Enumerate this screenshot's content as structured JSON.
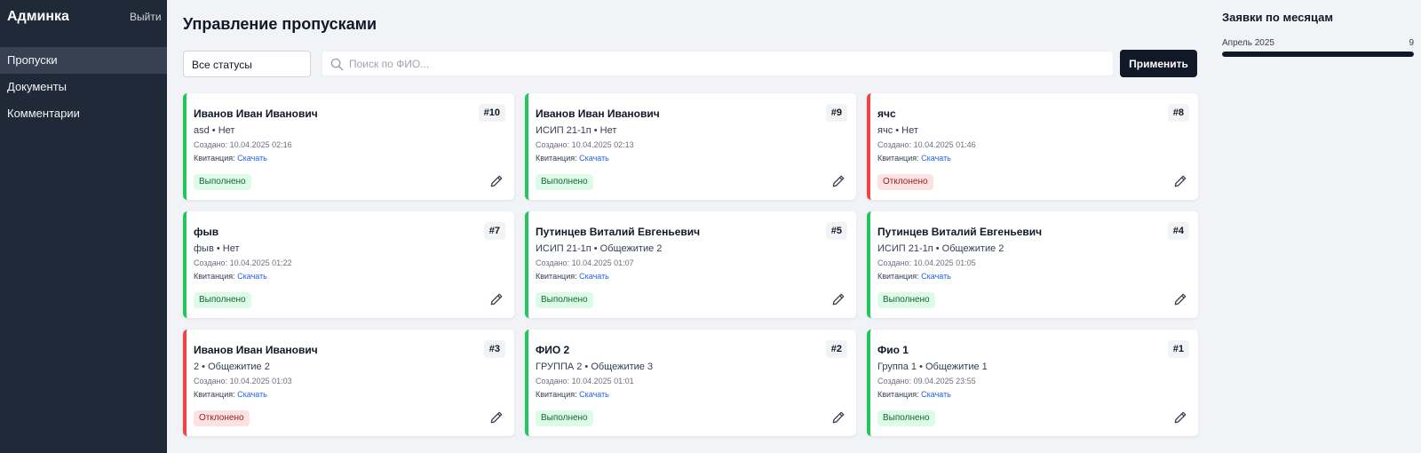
{
  "sidebar": {
    "brand": "Админка",
    "logout": "Выйти",
    "items": [
      {
        "label": "Пропуски",
        "active": true
      },
      {
        "label": "Документы",
        "active": false
      },
      {
        "label": "Комментарии",
        "active": false
      }
    ]
  },
  "header": {
    "title": "Управление пропусками"
  },
  "filters": {
    "status_value": "Все статусы",
    "search_placeholder": "Поиск по ФИО...",
    "apply_label": "Применить"
  },
  "cards": [
    {
      "name": "Иванов Иван Иванович",
      "sub": "asd • Нет",
      "created": "Создано: 10.04.2025 02:16",
      "receipt_label": "Квитанция:",
      "receipt_link": "Скачать",
      "num": "#10",
      "status": "Выполнено",
      "status_kind": "done"
    },
    {
      "name": "Иванов Иван Иванович",
      "sub": "ИСИП 21-1п • Нет",
      "created": "Создано: 10.04.2025 02:13",
      "receipt_label": "Квитанция:",
      "receipt_link": "Скачать",
      "num": "#9",
      "status": "Выполнено",
      "status_kind": "done"
    },
    {
      "name": "ячс",
      "sub": "ячс • Нет",
      "created": "Создано: 10.04.2025 01:46",
      "receipt_label": "Квитанция:",
      "receipt_link": "Скачать",
      "num": "#8",
      "status": "Отклонено",
      "status_kind": "rejected"
    },
    {
      "name": "фыв",
      "sub": "фыв • Нет",
      "created": "Создано: 10.04.2025 01:22",
      "receipt_label": "Квитанция:",
      "receipt_link": "Скачать",
      "num": "#7",
      "status": "Выполнено",
      "status_kind": "done"
    },
    {
      "name": "Путинцев Виталий Евгеньевич",
      "sub": "ИСИП 21-1п • Общежитие 2",
      "created": "Создано: 10.04.2025 01:07",
      "receipt_label": "Квитанция:",
      "receipt_link": "Скачать",
      "num": "#5",
      "status": "Выполнено",
      "status_kind": "done"
    },
    {
      "name": "Путинцев Виталий Евгеньевич",
      "sub": "ИСИП 21-1п • Общежитие 2",
      "created": "Создано: 10.04.2025 01:05",
      "receipt_label": "Квитанция:",
      "receipt_link": "Скачать",
      "num": "#4",
      "status": "Выполнено",
      "status_kind": "done"
    },
    {
      "name": "Иванов Иван Иванович",
      "sub": "2 • Общежитие 2",
      "created": "Создано: 10.04.2025 01:03",
      "receipt_label": "Квитанция:",
      "receipt_link": "Скачать",
      "num": "#3",
      "status": "Отклонено",
      "status_kind": "rejected"
    },
    {
      "name": "ФИО 2",
      "sub": "ГРУППА 2 • Общежитие 3",
      "created": "Создано: 10.04.2025 01:01",
      "receipt_label": "Квитанция:",
      "receipt_link": "Скачать",
      "num": "#2",
      "status": "Выполнено",
      "status_kind": "done"
    },
    {
      "name": "Фио 1",
      "sub": "Группа 1 • Общежитие 1",
      "created": "Создано: 09.04.2025 23:55",
      "receipt_label": "Квитанция:",
      "receipt_link": "Скачать",
      "num": "#1",
      "status": "Выполнено",
      "status_kind": "done"
    }
  ],
  "monthly": {
    "title": "Заявки по месяцам",
    "items": [
      {
        "label": "Апрель 2025",
        "count": "9",
        "fraction": 1.0
      }
    ]
  },
  "colors": {
    "sidebar_bg": "#1f2937",
    "done": "#22c55e",
    "rejected": "#ef4444",
    "link": "#2563eb",
    "primary_button": "#111827"
  },
  "icons": {
    "search": "search-icon",
    "edit": "pencil-icon"
  }
}
